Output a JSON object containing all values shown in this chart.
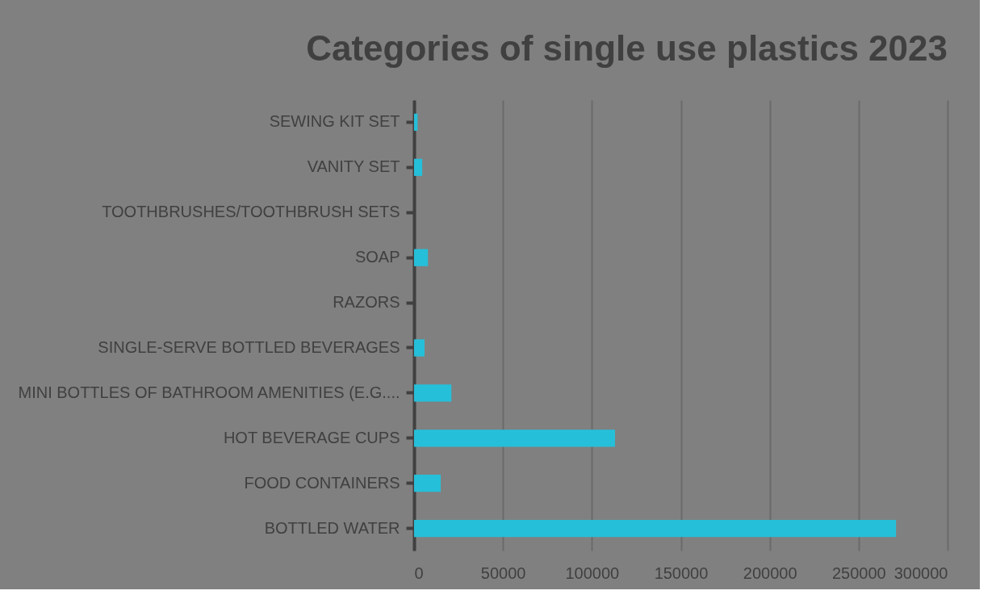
{
  "chart_data": {
    "type": "bar",
    "orientation": "horizontal",
    "title": "Categories of single use plastics 2023",
    "categories": [
      "SEWING KIT SET",
      "VANITY SET ",
      "TOOTHBRUSHES/TOOTHBRUSH SETS",
      "SOAP",
      "RAZORS",
      "SINGLE-SERVE BOTTLED BEVERAGES",
      "MINI BOTTLES OF BATHROOM AMENITIES (E.G....",
      "HOT BEVERAGE CUPS",
      "FOOD CONTAINERS",
      "BOTTLED WATER"
    ],
    "values": [
      2000,
      4600,
      0,
      7800,
      0,
      5900,
      21000,
      113000,
      15000,
      271000
    ],
    "color": "#26bfd9",
    "xlim": [
      0,
      300000
    ],
    "xticks": [
      0,
      50000,
      100000,
      150000,
      200000,
      250000,
      300000
    ],
    "grid": "x"
  }
}
